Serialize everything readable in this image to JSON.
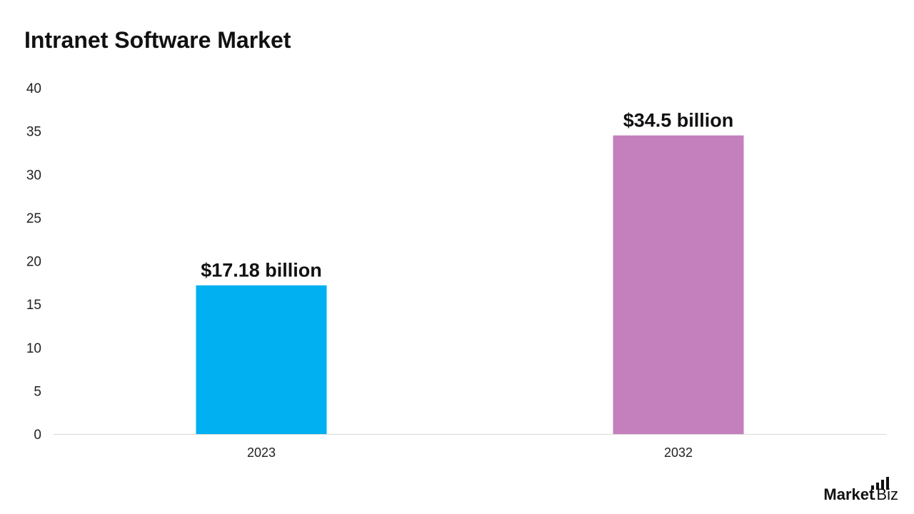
{
  "chart_data": {
    "type": "bar",
    "title": "Intranet Software Market",
    "categories": [
      "2023",
      "2032"
    ],
    "values": [
      17.18,
      34.5
    ],
    "data_labels": [
      "$17.18 billion",
      "$34.5 billion"
    ],
    "colors": [
      "#00B0F0",
      "#C47FBD"
    ],
    "ylim": [
      0,
      40
    ],
    "yticks": [
      "0",
      "5",
      "10",
      "15",
      "20",
      "25",
      "30",
      "35",
      "40"
    ],
    "xlabel": "",
    "ylabel": "",
    "grid": false
  },
  "logo": {
    "bold": "Market",
    "light": ".Biz"
  }
}
